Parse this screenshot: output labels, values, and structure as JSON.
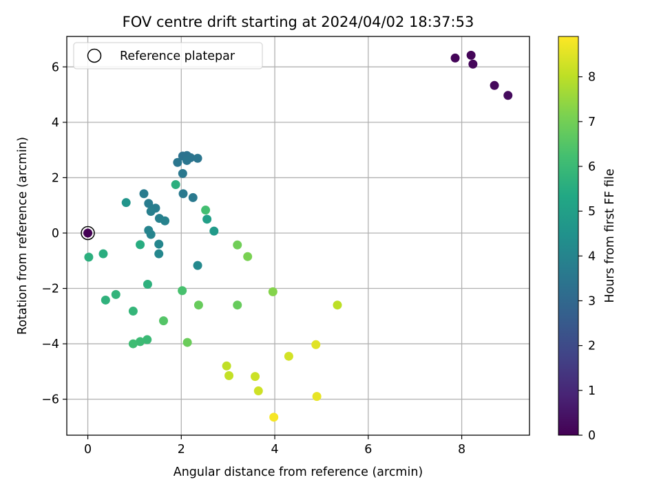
{
  "chart_data": {
    "type": "scatter",
    "title": "FOV centre drift starting at 2024/04/02 18:37:53",
    "xlabel": "Angular distance from reference (arcmin)",
    "ylabel": "Rotation from reference (arcmin)",
    "xlim": [
      -0.45,
      9.45
    ],
    "ylim": [
      -7.3,
      7.1
    ],
    "x_ticks": [
      0,
      2,
      4,
      6,
      8
    ],
    "y_ticks": [
      -6,
      -4,
      -2,
      0,
      2,
      4,
      6
    ],
    "x_tick_labels": [
      "0",
      "2",
      "4",
      "6",
      "8"
    ],
    "y_tick_labels": [
      "−6",
      "−4",
      "−2",
      "0",
      "2",
      "4",
      "6"
    ],
    "grid": true,
    "legend": {
      "position": "top-left",
      "label": "Reference platepar"
    },
    "reference_point": {
      "x": 0,
      "y": 0
    },
    "colorbar": {
      "label": "Hours from first FF file",
      "range": [
        0,
        8.9
      ],
      "ticks": [
        0,
        1,
        2,
        3,
        4,
        5,
        6,
        7,
        8
      ],
      "tick_labels": [
        "0",
        "1",
        "2",
        "3",
        "4",
        "5",
        "6",
        "7",
        "8"
      ],
      "colormap": "viridis"
    },
    "points": [
      {
        "x": 0.0,
        "y": 0.0,
        "c": 0.0
      },
      {
        "x": 7.86,
        "y": 6.32,
        "c": 0.1
      },
      {
        "x": 8.2,
        "y": 6.42,
        "c": 0.1
      },
      {
        "x": 8.24,
        "y": 6.1,
        "c": 0.15
      },
      {
        "x": 8.7,
        "y": 5.33,
        "c": 0.2
      },
      {
        "x": 8.99,
        "y": 4.97,
        "c": 0.25
      },
      {
        "x": 2.03,
        "y": 2.78,
        "c": 3.35
      },
      {
        "x": 2.12,
        "y": 2.8,
        "c": 3.35
      },
      {
        "x": 2.2,
        "y": 2.72,
        "c": 3.4
      },
      {
        "x": 2.35,
        "y": 2.7,
        "c": 3.45
      },
      {
        "x": 2.12,
        "y": 2.62,
        "c": 3.45
      },
      {
        "x": 1.92,
        "y": 2.55,
        "c": 3.5
      },
      {
        "x": 2.03,
        "y": 2.15,
        "c": 3.55
      },
      {
        "x": 2.04,
        "y": 1.42,
        "c": 3.6
      },
      {
        "x": 2.25,
        "y": 1.28,
        "c": 3.6
      },
      {
        "x": 1.2,
        "y": 1.42,
        "c": 3.65
      },
      {
        "x": 1.3,
        "y": 1.07,
        "c": 3.7
      },
      {
        "x": 1.45,
        "y": 0.9,
        "c": 3.75
      },
      {
        "x": 1.35,
        "y": 0.78,
        "c": 3.8
      },
      {
        "x": 1.53,
        "y": 0.53,
        "c": 3.85
      },
      {
        "x": 1.65,
        "y": 0.44,
        "c": 3.9
      },
      {
        "x": 1.3,
        "y": 0.1,
        "c": 3.95
      },
      {
        "x": 1.35,
        "y": -0.05,
        "c": 4.0
      },
      {
        "x": 1.52,
        "y": -0.4,
        "c": 4.05
      },
      {
        "x": 1.52,
        "y": -0.75,
        "c": 4.1
      },
      {
        "x": 2.35,
        "y": -1.17,
        "c": 4.15
      },
      {
        "x": 0.82,
        "y": 1.1,
        "c": 4.6
      },
      {
        "x": 2.7,
        "y": 0.07,
        "c": 4.8
      },
      {
        "x": 2.55,
        "y": 0.5,
        "c": 5.0
      },
      {
        "x": 1.88,
        "y": 1.75,
        "c": 5.6
      },
      {
        "x": 2.52,
        "y": 0.83,
        "c": 6.2
      },
      {
        "x": 1.12,
        "y": -0.42,
        "c": 5.5
      },
      {
        "x": 0.33,
        "y": -0.75,
        "c": 5.55
      },
      {
        "x": 0.02,
        "y": -0.87,
        "c": 5.6
      },
      {
        "x": 1.28,
        "y": -1.85,
        "c": 5.65
      },
      {
        "x": 0.38,
        "y": -2.42,
        "c": 5.7
      },
      {
        "x": 0.6,
        "y": -2.22,
        "c": 5.75
      },
      {
        "x": 0.97,
        "y": -2.82,
        "c": 5.85
      },
      {
        "x": 1.27,
        "y": -3.85,
        "c": 6.0
      },
      {
        "x": 1.12,
        "y": -3.92,
        "c": 6.05
      },
      {
        "x": 0.97,
        "y": -4.0,
        "c": 6.1
      },
      {
        "x": 2.02,
        "y": -2.08,
        "c": 6.3
      },
      {
        "x": 1.62,
        "y": -3.17,
        "c": 6.5
      },
      {
        "x": 2.37,
        "y": -2.6,
        "c": 6.8
      },
      {
        "x": 3.2,
        "y": -2.6,
        "c": 6.8
      },
      {
        "x": 2.13,
        "y": -3.95,
        "c": 6.85
      },
      {
        "x": 3.2,
        "y": -0.43,
        "c": 6.95
      },
      {
        "x": 3.42,
        "y": -0.85,
        "c": 7.1
      },
      {
        "x": 3.96,
        "y": -2.12,
        "c": 7.25
      },
      {
        "x": 5.34,
        "y": -2.6,
        "c": 8.0
      },
      {
        "x": 2.97,
        "y": -4.8,
        "c": 8.05
      },
      {
        "x": 3.02,
        "y": -5.15,
        "c": 8.1
      },
      {
        "x": 3.58,
        "y": -5.18,
        "c": 8.2
      },
      {
        "x": 3.65,
        "y": -5.7,
        "c": 8.25
      },
      {
        "x": 4.3,
        "y": -4.45,
        "c": 8.3
      },
      {
        "x": 4.88,
        "y": -4.03,
        "c": 8.5
      },
      {
        "x": 4.9,
        "y": -5.9,
        "c": 8.6
      },
      {
        "x": 3.98,
        "y": -6.65,
        "c": 8.8
      }
    ]
  }
}
